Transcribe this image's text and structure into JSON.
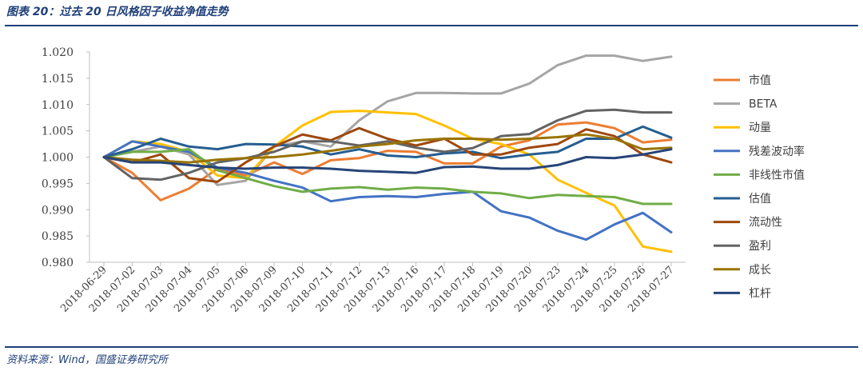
{
  "header": {
    "title": "图表 20：过去 20 日风格因子收益净值走势"
  },
  "footer": {
    "source": "资料来源：Wind，国盛证券研究所"
  },
  "chart_data": {
    "type": "line",
    "title": "",
    "xlabel": "",
    "ylabel": "",
    "ylim": [
      0.98,
      1.02
    ],
    "yticks": [
      "1.020",
      "1.015",
      "1.010",
      "1.005",
      "1.000",
      "0.995",
      "0.990",
      "0.985",
      "0.980"
    ],
    "grid": false,
    "legend": "right",
    "categories": [
      "2018-06-29",
      "2018-07-02",
      "2018-07-03",
      "2018-07-04",
      "2018-07-05",
      "2018-07-06",
      "2018-07-09",
      "2018-07-10",
      "2018-07-11",
      "2018-07-12",
      "2018-07-13",
      "2018-07-16",
      "2018-07-17",
      "2018-07-18",
      "2018-07-19",
      "2018-07-20",
      "2018-07-23",
      "2018-07-24",
      "2018-07-25",
      "2018-07-26",
      "2018-07-27"
    ],
    "series": [
      {
        "name": "市值",
        "color": "#ED7D31",
        "values": [
          1.0,
          0.997,
          0.9918,
          0.994,
          0.9978,
          0.9965,
          0.999,
          0.9968,
          0.9994,
          0.9998,
          1.0012,
          1.001,
          0.9988,
          0.9988,
          1.002,
          1.0032,
          1.0062,
          1.0066,
          1.0055,
          1.0028,
          1.0033
        ]
      },
      {
        "name": "BETA",
        "color": "#A5A5A5",
        "values": [
          1.0,
          1.001,
          1.002,
          1.0005,
          0.9947,
          0.9955,
          1.002,
          1.003,
          1.002,
          1.007,
          1.0106,
          1.0122,
          1.0122,
          1.0121,
          1.0121,
          1.014,
          1.0175,
          1.0193,
          1.0193,
          1.0183,
          1.0191
        ]
      },
      {
        "name": "动量",
        "color": "#FFC000",
        "values": [
          1.0,
          1.003,
          1.0025,
          1.001,
          0.9965,
          0.996,
          1.002,
          1.006,
          1.0086,
          1.0088,
          1.0085,
          1.0082,
          1.006,
          1.0035,
          1.0025,
          1.0005,
          0.9957,
          0.9932,
          0.9908,
          0.983,
          0.982
        ]
      },
      {
        "name": "残差波动率",
        "color": "#4472C4",
        "values": [
          1.0,
          1.003,
          1.002,
          1.001,
          0.998,
          0.997,
          0.9955,
          0.9942,
          0.9916,
          0.9924,
          0.9926,
          0.9924,
          0.993,
          0.9934,
          0.9897,
          0.9885,
          0.986,
          0.9843,
          0.9872,
          0.9894,
          0.9857
        ]
      },
      {
        "name": "非线性市值",
        "color": "#70AD47",
        "values": [
          1.0,
          1.001,
          1.001,
          1.0015,
          0.9975,
          0.996,
          0.9945,
          0.9934,
          0.994,
          0.9943,
          0.9938,
          0.9942,
          0.994,
          0.9934,
          0.9931,
          0.9922,
          0.9928,
          0.9926,
          0.9924,
          0.9911,
          0.9911
        ]
      },
      {
        "name": "估值",
        "color": "#255E91",
        "values": [
          1.0,
          1.0015,
          1.0035,
          1.002,
          1.0015,
          1.0025,
          1.0024,
          1.002,
          1.0005,
          1.0015,
          1.0003,
          1.0,
          1.0007,
          1.001,
          0.9998,
          1.0005,
          1.001,
          1.0035,
          1.0035,
          1.0058,
          1.0037
        ]
      },
      {
        "name": "流动性",
        "color": "#9E480E",
        "values": [
          1.0,
          0.999,
          1.0005,
          0.996,
          0.9953,
          0.999,
          1.002,
          1.0043,
          1.0032,
          1.0055,
          1.0035,
          1.0022,
          1.0035,
          1.0005,
          1.0005,
          1.0018,
          1.0025,
          1.0053,
          1.004,
          1.0005,
          0.999
        ]
      },
      {
        "name": "盈利",
        "color": "#636363",
        "values": [
          1.0,
          0.996,
          0.9957,
          0.997,
          0.999,
          0.9998,
          1.001,
          1.003,
          1.003,
          1.0022,
          1.003,
          1.0018,
          1.001,
          1.0017,
          1.004,
          1.0044,
          1.007,
          1.0088,
          1.009,
          1.0085,
          1.0085
        ]
      },
      {
        "name": "成长",
        "color": "#997300",
        "values": [
          1.0,
          0.9995,
          0.9993,
          0.999,
          0.9995,
          0.9998,
          1.0,
          1.0005,
          1.0012,
          1.002,
          1.0025,
          1.0032,
          1.0035,
          1.0035,
          1.0033,
          1.0035,
          1.0038,
          1.0043,
          1.0035,
          1.0015,
          1.0018
        ]
      },
      {
        "name": "杠杆",
        "color": "#264478",
        "values": [
          1.0,
          0.999,
          0.999,
          0.9985,
          0.998,
          0.9978,
          0.998,
          0.998,
          0.9978,
          0.9974,
          0.9972,
          0.997,
          0.9981,
          0.9982,
          0.9978,
          0.9978,
          0.9985,
          1.0,
          0.9998,
          1.0005,
          1.0015
        ]
      }
    ]
  }
}
